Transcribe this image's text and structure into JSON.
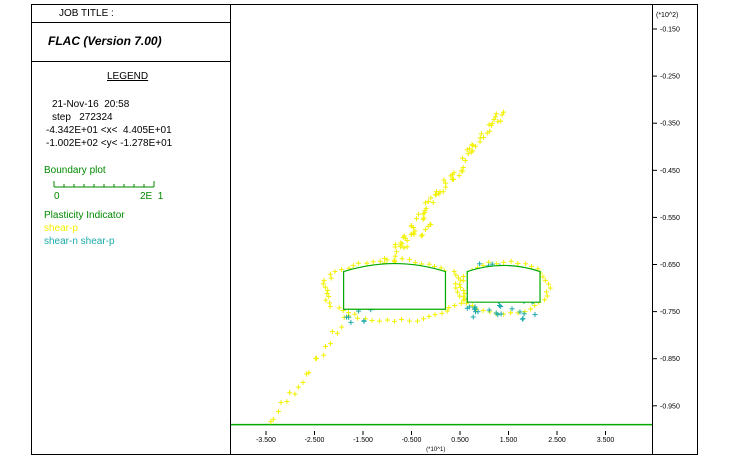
{
  "header": {
    "job_title_label": "JOB TITLE :",
    "y_exponent_label": "(*10^2)"
  },
  "info": {
    "program": "FLAC (Version 7.00)",
    "legend_title": "LEGEND",
    "date": "21-Nov-16  20:58",
    "step": "step   272324",
    "x_range": "-4.342E+01 <x<  4.405E+01",
    "y_range": "-1.002E+02 <y< -1.278E+01",
    "boundary_title": "Boundary plot",
    "scale_min": "0",
    "scale_max": "2E  1",
    "plasticity_title": "Plasticity Indicator",
    "legend_items": [
      {
        "label": "shear-p",
        "color": "#f2f200"
      },
      {
        "label": "shear-n shear-p",
        "color": "#1aaaaa"
      }
    ]
  },
  "colors": {
    "green_text": "#008a00",
    "boundary": "#00aa00",
    "shear_p": "#f2f200",
    "shear_n_shear_p": "#1aaaaa"
  },
  "chart_data": {
    "type": "scatter",
    "xlabel": "(*10^1)",
    "ylabel": "(*10^2)",
    "xlim": [
      -4.342,
      4.405
    ],
    "ylim": [
      -1.002,
      -0.1278
    ],
    "x_ticks": [
      -3.5,
      -2.5,
      -1.5,
      -0.5,
      0.5,
      1.5,
      2.5,
      3.5
    ],
    "x_tick_labels": [
      "-3.500",
      "-2.500",
      "-1.500",
      "-0.500",
      "0.500",
      "1.500",
      "2.500",
      "3.500"
    ],
    "y_ticks": [
      -0.15,
      -0.25,
      -0.35,
      -0.45,
      -0.55,
      -0.65,
      -0.75,
      -0.85,
      -0.95
    ],
    "y_tick_labels": [
      "-0.150",
      "-0.250",
      "-0.350",
      "-0.450",
      "-0.550",
      "-0.650",
      "-0.750",
      "-0.850",
      "-0.950"
    ],
    "grid": false,
    "legend_position": "left panel",
    "boundary_y": -0.99,
    "openings": [
      {
        "xmin": -1.9,
        "xmax": 0.2,
        "ymin": -0.745,
        "ymax": -0.665,
        "crown_y": -0.648
      },
      {
        "xmin": 0.65,
        "xmax": 2.15,
        "ymin": -0.73,
        "ymax": -0.665,
        "crown_y": -0.652
      }
    ],
    "series": [
      {
        "name": "shear-p",
        "bands": [
          {
            "from": [
              -3.4,
              -0.985
            ],
            "to": [
              -1.7,
              -0.745
            ],
            "n": 22,
            "width": 0.08
          },
          {
            "from": [
              -0.8,
              -0.615
            ],
            "to": [
              1.35,
              -0.33
            ],
            "n": 36,
            "width": 0.12
          },
          {
            "from": [
              -1.1,
              -0.655
            ],
            "to": [
              -0.1,
              -0.56
            ],
            "n": 10,
            "width": 0.14
          }
        ],
        "rings": [
          {
            "cx": -0.85,
            "cy": -0.705,
            "rx": 1.45,
            "ry": 0.065,
            "n": 60
          },
          {
            "cx": 1.4,
            "cy": -0.7,
            "rx": 0.95,
            "ry": 0.055,
            "n": 40
          }
        ]
      },
      {
        "name": "shear-n shear-p",
        "arcs": [
          {
            "cx": -1.55,
            "cy": -0.755,
            "rx": 0.3,
            "ry": 0.018,
            "n": 10
          },
          {
            "cx": -0.65,
            "cy": -0.665,
            "rx": 0.55,
            "ry": 0.012,
            "n": 10
          },
          {
            "cx": 1.4,
            "cy": -0.74,
            "rx": 0.75,
            "ry": 0.03,
            "n": 30
          },
          {
            "cx": 1.45,
            "cy": -0.66,
            "rx": 0.55,
            "ry": 0.012,
            "n": 12
          }
        ]
      }
    ]
  }
}
